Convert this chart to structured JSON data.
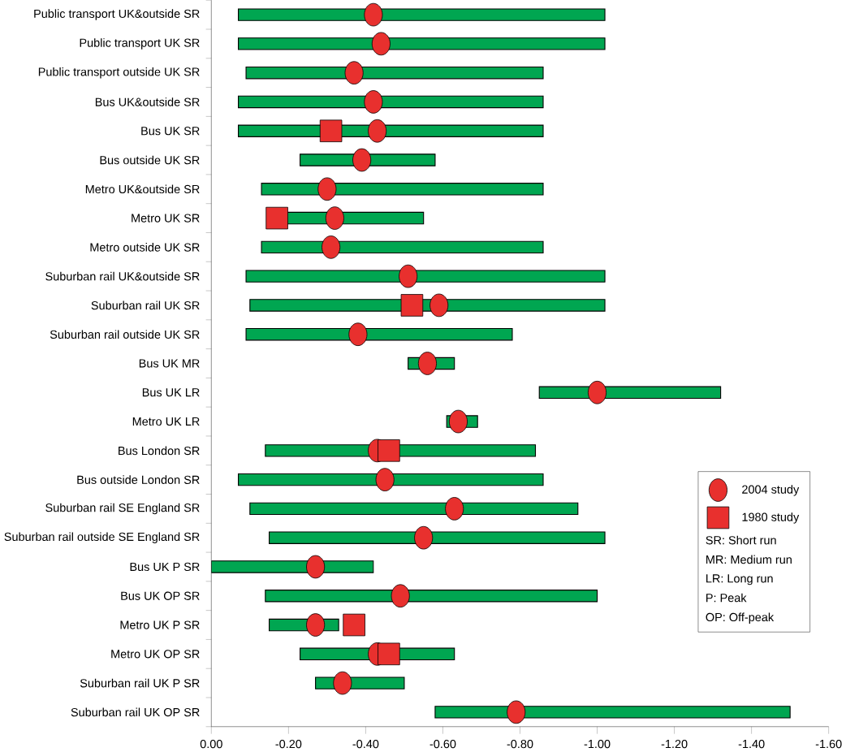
{
  "chart_data": {
    "type": "bar",
    "orientation": "horizontal",
    "categories": [
      "Public transport UK&outside SR",
      "Public transport UK SR",
      "Public transport outside UK SR",
      "Bus UK&outside SR",
      "Bus UK SR",
      "Bus outside UK SR",
      "Metro UK&outside SR",
      "Metro UK SR",
      "Metro outside UK SR",
      "Suburban rail UK&outside SR",
      "Suburban rail UK SR",
      "Suburban rail outside UK SR",
      "Bus UK MR",
      "Bus UK LR",
      "Metro UK LR",
      "Bus London SR",
      "Bus outside London SR",
      "Suburban rail SE England SR",
      "Suburban rail outside SE England SR",
      "Bus UK P SR",
      "Bus UK OP SR",
      "Metro UK P SR",
      "Metro UK OP SR",
      "Suburban rail UK P SR",
      "Suburban rail UK OP SR"
    ],
    "series": [
      {
        "type": "bar",
        "color": "#00a651",
        "base": [
          -0.07,
          -0.07,
          -0.09,
          -0.07,
          -0.07,
          -0.23,
          -0.13,
          -0.15,
          -0.13,
          -0.09,
          -0.1,
          -0.09,
          -0.51,
          -0.85,
          -0.61,
          -0.14,
          -0.07,
          -0.1,
          -0.15,
          0.0,
          -0.14,
          -0.15,
          -0.23,
          -0.27,
          -0.58
        ],
        "values": [
          -0.95,
          -0.95,
          -0.77,
          -0.79,
          -0.79,
          -0.35,
          -0.73,
          -0.4,
          -0.73,
          -0.93,
          -0.92,
          -0.69,
          -0.12,
          -0.47,
          -0.08,
          -0.7,
          -0.79,
          -0.85,
          -0.87,
          -0.42,
          -0.86,
          -0.18,
          -0.4,
          -0.23,
          -0.92
        ]
      },
      {
        "type": "scatter",
        "name": "2004 study",
        "color": "#e8302e",
        "marker": "circle",
        "values": [
          -0.42,
          -0.44,
          -0.37,
          -0.42,
          -0.43,
          -0.39,
          -0.3,
          -0.32,
          -0.31,
          -0.51,
          -0.59,
          -0.38,
          -0.56,
          -1.0,
          -0.64,
          -0.43,
          -0.45,
          -0.63,
          -0.55,
          -0.27,
          -0.49,
          -0.27,
          -0.43,
          -0.34,
          -0.79
        ]
      },
      {
        "type": "scatter",
        "name": "1980 study",
        "color": "#e8302e",
        "marker": "square",
        "values": [
          null,
          null,
          null,
          null,
          -0.31,
          null,
          null,
          -0.17,
          null,
          null,
          -0.52,
          null,
          null,
          null,
          null,
          -0.46,
          null,
          null,
          null,
          null,
          null,
          -0.37,
          -0.46,
          null,
          null
        ]
      }
    ],
    "xlim": [
      0,
      -1.6
    ],
    "xticks": [
      {
        "value": 0,
        "label": "0.00"
      },
      {
        "value": -0.2,
        "label": "-0.20"
      },
      {
        "value": -0.4,
        "label": "-0.40"
      },
      {
        "value": -0.6,
        "label": "-0.60"
      },
      {
        "value": -0.8,
        "label": "-0.80"
      },
      {
        "value": -1.0,
        "label": "-1.00"
      },
      {
        "value": -1.2,
        "label": "-1.20"
      },
      {
        "value": -1.4,
        "label": "-1.40"
      },
      {
        "value": -1.6,
        "label": "-1.60"
      }
    ],
    "legend": "bottom right",
    "annotations": [
      "SR: Short run",
      "MR: Medium run",
      "LR: Long run",
      "P: Peak",
      "OP: Off-peak"
    ]
  }
}
